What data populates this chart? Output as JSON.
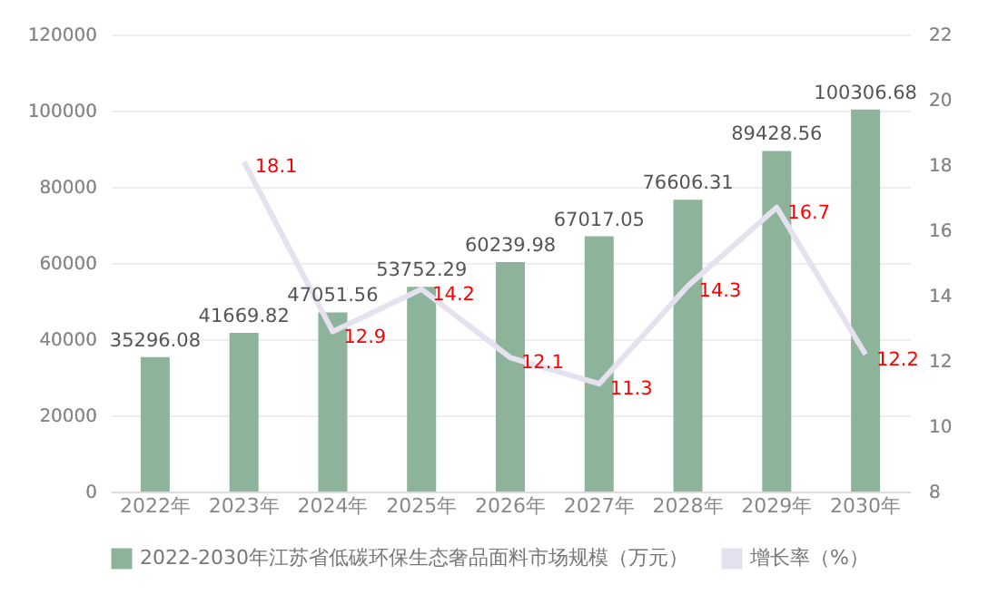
{
  "chart_data": {
    "type": "bar",
    "categories": [
      "2022年",
      "2023年",
      "2024年",
      "2025年",
      "2026年",
      "2027年",
      "2028年",
      "2029年",
      "2030年"
    ],
    "series": [
      {
        "name": "2022-2030年江苏省低碳环保生态奢品面料市场规模（万元）",
        "color": "#8db39a",
        "values": [
          35296.08,
          41669.82,
          47051.56,
          53752.29,
          60239.98,
          67017.05,
          76606.31,
          89428.56,
          100306.68
        ]
      },
      {
        "name": "增长率（%）",
        "type": "line",
        "axis": "y2",
        "color": "#e6e1ee",
        "values": [
          null,
          18.1,
          12.9,
          14.2,
          12.1,
          11.3,
          14.3,
          16.7,
          12.2
        ]
      }
    ],
    "ylim": [
      0,
      120000
    ],
    "yticks": [
      0,
      20000,
      40000,
      60000,
      80000,
      100000,
      120000
    ],
    "y2lim": [
      8,
      22
    ],
    "y2ticks": [
      8,
      10,
      12,
      14,
      16,
      18,
      20,
      22
    ],
    "data_labels": true,
    "grid": "y",
    "legend": "bottom"
  }
}
